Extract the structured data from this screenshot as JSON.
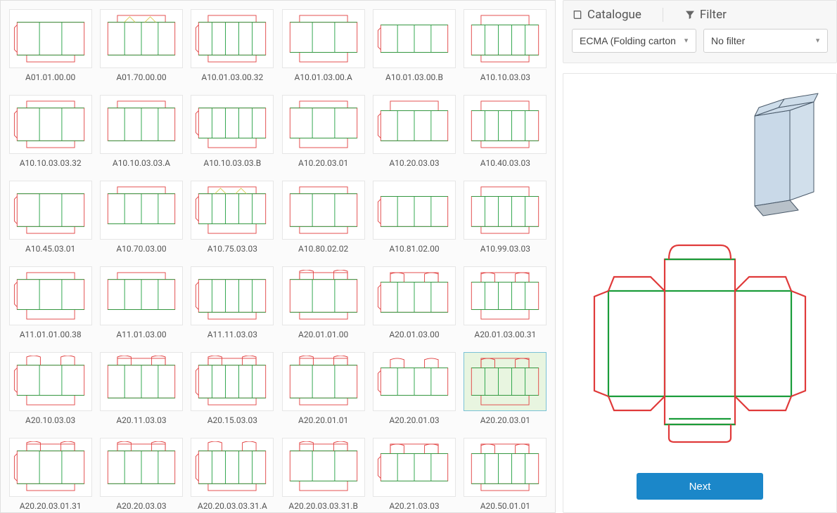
{
  "colors": {
    "cut": "#e03a3a",
    "fold": "#1a9c3a",
    "guide": "#d8c84a",
    "panel_bg": "#fbfbfb",
    "border": "#e0e0e0",
    "selected_bg": "#e8f5e0",
    "selected_border": "#7ac2d6",
    "btn_bg": "#1b87c9",
    "text": "#555555",
    "box3d_fill": "#c9d9e8",
    "box3d_stroke": "#4a5a6a"
  },
  "header": {
    "catalogue_label": "Catalogue",
    "filter_label": "Filter"
  },
  "catalogue_select": {
    "value": "ECMA (Folding carton)"
  },
  "filter_select": {
    "value": "No filter"
  },
  "next_button": {
    "label": "Next"
  },
  "selected_code": "A20.20.03.01",
  "grid": {
    "items": [
      {
        "code": "A01.01.00.00",
        "variant": 0
      },
      {
        "code": "A01.70.00.00",
        "variant": 1
      },
      {
        "code": "A10.01.03.00.32",
        "variant": 2
      },
      {
        "code": "A10.01.03.00.A",
        "variant": 3
      },
      {
        "code": "A10.01.03.00.B",
        "variant": 4
      },
      {
        "code": "A10.10.03.03",
        "variant": 5
      },
      {
        "code": "A10.10.03.03.32",
        "variant": 6
      },
      {
        "code": "A10.10.03.03.A",
        "variant": 7
      },
      {
        "code": "A10.10.03.03.B",
        "variant": 8
      },
      {
        "code": "A10.20.03.01",
        "variant": 9
      },
      {
        "code": "A10.20.03.03",
        "variant": 10
      },
      {
        "code": "A10.40.03.03",
        "variant": 11
      },
      {
        "code": "A10.45.03.01",
        "variant": 12
      },
      {
        "code": "A10.70.03.00",
        "variant": 13
      },
      {
        "code": "A10.75.03.03",
        "variant": 14
      },
      {
        "code": "A10.80.02.02",
        "variant": 15
      },
      {
        "code": "A10.81.02.00",
        "variant": 16
      },
      {
        "code": "A10.99.03.03",
        "variant": 17
      },
      {
        "code": "A11.01.01.00.38",
        "variant": 18
      },
      {
        "code": "A11.01.03.00",
        "variant": 19
      },
      {
        "code": "A11.11.03.03",
        "variant": 20
      },
      {
        "code": "A20.01.01.00",
        "variant": 21
      },
      {
        "code": "A20.01.03.00",
        "variant": 22
      },
      {
        "code": "A20.01.03.00.31",
        "variant": 23
      },
      {
        "code": "A20.10.03.03",
        "variant": 24
      },
      {
        "code": "A20.11.03.03",
        "variant": 25
      },
      {
        "code": "A20.15.03.03",
        "variant": 26
      },
      {
        "code": "A20.20.01.01",
        "variant": 27
      },
      {
        "code": "A20.20.01.03",
        "variant": 28
      },
      {
        "code": "A20.20.03.01",
        "variant": 29
      },
      {
        "code": "A20.20.03.01.31",
        "variant": 30
      },
      {
        "code": "A20.20.03.03",
        "variant": 31
      },
      {
        "code": "A20.20.03.03.31.A",
        "variant": 32
      },
      {
        "code": "A20.20.03.03.31.B",
        "variant": 33
      },
      {
        "code": "A20.21.03.03",
        "variant": 34
      },
      {
        "code": "A20.50.01.01",
        "variant": 35
      }
    ]
  }
}
